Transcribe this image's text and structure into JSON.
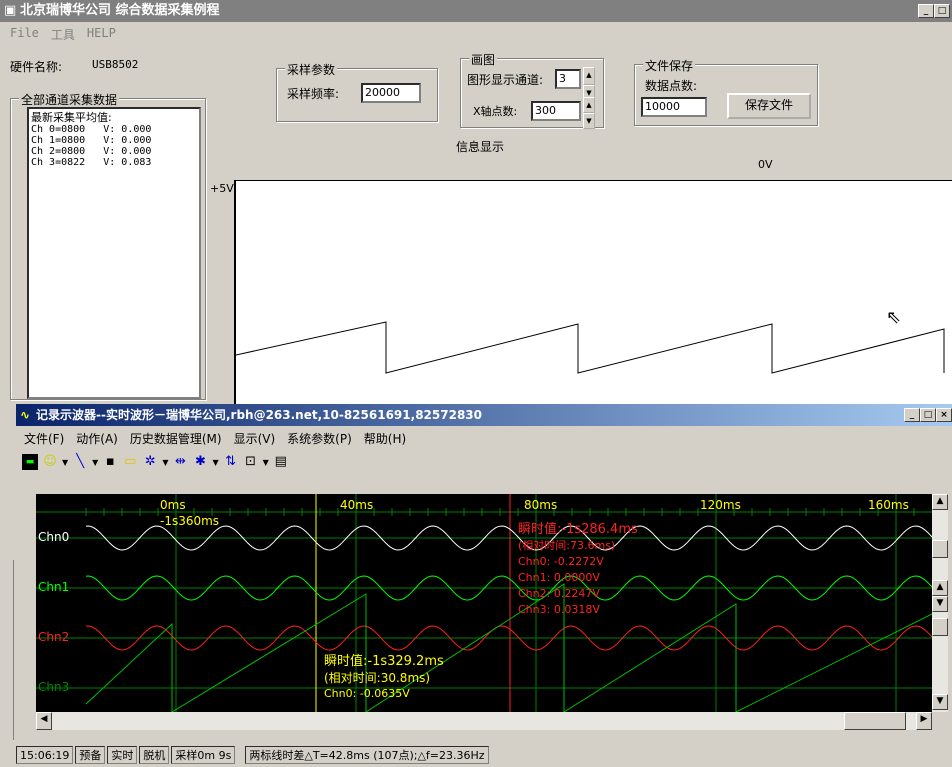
{
  "main_window": {
    "title": "北京瑞博华公司  综合数据采集例程",
    "menu": [
      "File",
      "工具",
      "HELP"
    ],
    "hw_label": "硬件名称:",
    "hw_name": "USB8502",
    "all_channels_title": "全部通道采集数据",
    "list_lines": [
      "最新采集平均值:",
      "Ch 0=0800   V: 0.000",
      "Ch 1=0800   V: 0.000",
      "Ch 2=0800   V: 0.000",
      "Ch 3=0822   V: 0.083"
    ],
    "sampling": {
      "title": "采样参数",
      "freq_label": "采样频率:",
      "freq_value": "20000"
    },
    "plot": {
      "title": "画图",
      "channel_label": "图形显示通道:",
      "channel_value": "3",
      "xpoints_label": "X轴点数:",
      "xpoints_value": "300"
    },
    "filesave": {
      "title": "文件保存",
      "points_label": "数据点数:",
      "points_value": "10000",
      "save_button": "保存文件"
    },
    "info_label": "信息显示",
    "plot_top_label": "+5V",
    "plot_zero_label": "0V"
  },
  "scope_window": {
    "title": "记录示波器--实时波形－瑞博华公司,rbh@263.net,10-82561691,82572830",
    "menu": [
      "文件(F)",
      "动作(A)",
      "历史数据管理(M)",
      "显示(V)",
      "系统参数(P)",
      "帮助(H)"
    ],
    "time_ticks": [
      "0ms",
      "40ms",
      "80ms",
      "120ms",
      "160ms"
    ],
    "channels": [
      "Chn0",
      "Chn1",
      "Chn2",
      "Chn3"
    ],
    "channel_colors": [
      "#ffffff",
      "#00ff00",
      "#ff2020",
      "#00c000"
    ],
    "cursor_yellow_top": "-1s360ms",
    "cursor_yellow": [
      "瞬时值:-1s329.2ms",
      "(相对时间:30.8ms)",
      "Chn0: -0.0635V"
    ],
    "cursor_red": [
      "瞬时值:-1s286.4ms",
      "(相对时间:73.6ms)",
      "Chn0: -0.2272V",
      "Chn1: 0.0000V",
      "Chn2: 0.2247V",
      "Chn3: 0.0318V"
    ]
  },
  "status_bar": [
    "15:06:19",
    "预备",
    "实时",
    "脱机",
    "采样0m 9s",
    "两标线时差△T=42.8ms (107点);△f=23.36Hz"
  ]
}
